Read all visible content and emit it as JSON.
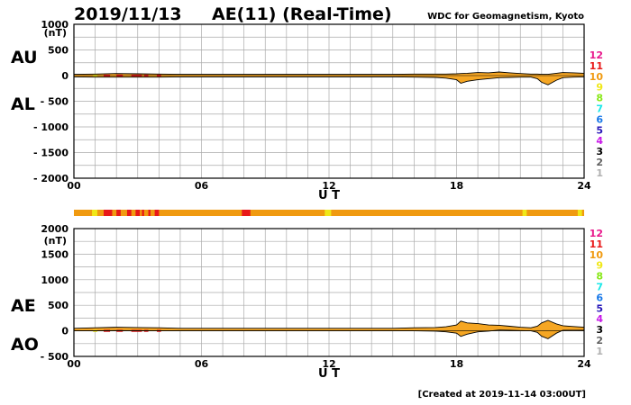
{
  "header": {
    "date": "2019/11/13",
    "title": "AE(11) (Real-Time)",
    "source": "WDC for Geomagnetism, Kyoto"
  },
  "footer": {
    "created": "[Created at 2019-11-14 03:00UT]"
  },
  "station_legend": {
    "labels": [
      "12",
      "11",
      "10",
      "9",
      "8",
      "7",
      "6",
      "5",
      "4",
      "3",
      "2",
      "1"
    ],
    "colors": [
      "#e8188c",
      "#e81818",
      "#f09a10",
      "#f0e818",
      "#88e818",
      "#18e8e8",
      "#1878e8",
      "#2818b8",
      "#c818e8",
      "#000000",
      "#606060",
      "#b0b0b0"
    ]
  },
  "colors": {
    "fill": "#f5a623",
    "line": "#000000",
    "grid": "#aaaaaa"
  },
  "chart_data": [
    {
      "type": "area",
      "panel": "AU/AL",
      "left_labels": [
        "AU",
        "AL"
      ],
      "unit": "(nT)",
      "xlabel": "U T",
      "xlim": [
        0,
        24
      ],
      "xticks": [
        0,
        6,
        12,
        18,
        24
      ],
      "xtick_labels": [
        "00",
        "06",
        "12",
        "18",
        "24"
      ],
      "ylim": [
        -2000,
        1000
      ],
      "yticks": [
        1000,
        500,
        0,
        -500,
        -1000,
        -1500,
        -2000
      ],
      "ytick_labels": [
        "1000",
        "500",
        "0",
        "- 500",
        "- 1000",
        "- 1500",
        "- 2000"
      ],
      "x_grid_step": 1,
      "y_grid_step": 250,
      "x": [
        0,
        1,
        2,
        3,
        4,
        5,
        6,
        7,
        8,
        9,
        10,
        11,
        12,
        13,
        14,
        15,
        16,
        17,
        17.5,
        18,
        18.2,
        18.5,
        19,
        19.5,
        20,
        20.5,
        21,
        21.5,
        21.8,
        22,
        22.3,
        22.7,
        23,
        23.5,
        24
      ],
      "series": [
        {
          "values": [
            25,
            30,
            40,
            35,
            30,
            25,
            25,
            25,
            25,
            25,
            25,
            25,
            25,
            25,
            25,
            25,
            30,
            30,
            30,
            35,
            40,
            45,
            60,
            55,
            70,
            55,
            40,
            30,
            30,
            25,
            25,
            45,
            60,
            55,
            45
          ]
        },
        {
          "values": [
            -25,
            -30,
            -30,
            -30,
            -30,
            -25,
            -25,
            -25,
            -25,
            -25,
            -25,
            -25,
            -25,
            -25,
            -25,
            -25,
            -30,
            -35,
            -50,
            -80,
            -150,
            -110,
            -80,
            -60,
            -40,
            -35,
            -30,
            -30,
            -60,
            -130,
            -180,
            -90,
            -40,
            -30,
            -25
          ]
        }
      ],
      "activity_segments": [
        {
          "start": 0.9,
          "end": 1.1,
          "color": "#f0e818"
        },
        {
          "start": 1.4,
          "end": 1.7,
          "color": "#e81818"
        },
        {
          "start": 2.0,
          "end": 2.3,
          "color": "#e81818"
        },
        {
          "start": 2.7,
          "end": 3.2,
          "color": "#e81818"
        },
        {
          "start": 3.3,
          "end": 3.5,
          "color": "#e81818"
        },
        {
          "start": 3.9,
          "end": 4.1,
          "color": "#e81818"
        }
      ]
    },
    {
      "type": "area",
      "panel": "AE/AO",
      "left_labels": [
        "AE",
        "AO"
      ],
      "unit": "(nT)",
      "xlabel": "U T",
      "xlim": [
        0,
        24
      ],
      "xticks": [
        0,
        6,
        12,
        18,
        24
      ],
      "xtick_labels": [
        "00",
        "06",
        "12",
        "18",
        "24"
      ],
      "ylim": [
        -500,
        2000
      ],
      "yticks": [
        2000,
        1500,
        1000,
        500,
        0,
        -500
      ],
      "ytick_labels": [
        "2000",
        "1500",
        "1000",
        "500",
        "0",
        "- 500"
      ],
      "x_grid_step": 1,
      "y_grid_step": 250,
      "x": [
        0,
        1,
        2,
        3,
        4,
        5,
        6,
        7,
        8,
        9,
        10,
        11,
        12,
        13,
        14,
        15,
        16,
        17,
        17.5,
        18,
        18.2,
        18.5,
        19,
        19.5,
        20,
        20.5,
        21,
        21.5,
        21.8,
        22,
        22.3,
        22.7,
        23,
        23.5,
        24
      ],
      "series": [
        {
          "values": [
            50,
            60,
            70,
            65,
            60,
            50,
            50,
            50,
            50,
            50,
            50,
            50,
            50,
            50,
            50,
            50,
            60,
            65,
            80,
            115,
            190,
            155,
            140,
            115,
            110,
            90,
            70,
            60,
            90,
            155,
            205,
            135,
            100,
            85,
            70
          ]
        },
        {
          "values": [
            0,
            0,
            5,
            3,
            0,
            0,
            0,
            0,
            0,
            0,
            0,
            0,
            0,
            0,
            0,
            0,
            0,
            -5,
            -20,
            -45,
            -110,
            -65,
            -20,
            -5,
            15,
            10,
            5,
            0,
            -30,
            -105,
            -155,
            -45,
            10,
            12,
            10
          ]
        }
      ],
      "activity_segments": [
        {
          "start": 0.9,
          "end": 1.1,
          "color": "#f0e818"
        },
        {
          "start": 1.4,
          "end": 1.7,
          "color": "#e81818"
        },
        {
          "start": 2.0,
          "end": 2.3,
          "color": "#e81818"
        },
        {
          "start": 2.7,
          "end": 3.2,
          "color": "#e81818"
        },
        {
          "start": 3.3,
          "end": 3.5,
          "color": "#e81818"
        },
        {
          "start": 3.9,
          "end": 4.1,
          "color": "#e81818"
        }
      ]
    }
  ],
  "activity_bar": {
    "base_color": "#f09a10",
    "segments": [
      {
        "start": 0.85,
        "end": 1.1,
        "color": "#f0e818"
      },
      {
        "start": 1.4,
        "end": 1.8,
        "color": "#e81818"
      },
      {
        "start": 2.0,
        "end": 2.2,
        "color": "#e81818"
      },
      {
        "start": 2.5,
        "end": 2.7,
        "color": "#e81818"
      },
      {
        "start": 2.9,
        "end": 3.1,
        "color": "#e81818"
      },
      {
        "start": 3.2,
        "end": 3.3,
        "color": "#e81818"
      },
      {
        "start": 3.5,
        "end": 3.6,
        "color": "#e81818"
      },
      {
        "start": 3.8,
        "end": 4.0,
        "color": "#e81818"
      },
      {
        "start": 7.9,
        "end": 8.3,
        "color": "#e81818"
      },
      {
        "start": 11.8,
        "end": 12.1,
        "color": "#f0e818"
      },
      {
        "start": 21.1,
        "end": 21.3,
        "color": "#f0e818"
      },
      {
        "start": 23.7,
        "end": 23.9,
        "color": "#f0e818"
      }
    ]
  }
}
